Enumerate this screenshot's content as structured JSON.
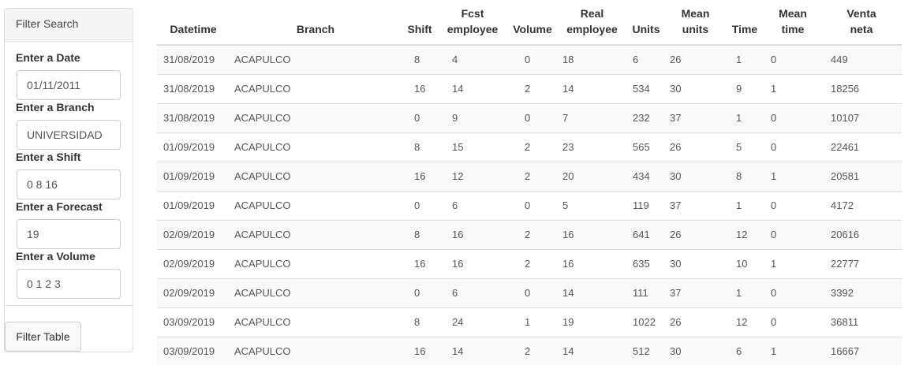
{
  "sidebar": {
    "heading": "Filter Search",
    "fields": [
      {
        "label": "Enter a Date",
        "value": "01/11/2011"
      },
      {
        "label": "Enter a Branch",
        "value": "UNIVERSIDAD"
      },
      {
        "label": "Enter a Shift",
        "value": "0 8 16"
      },
      {
        "label": "Enter a Forecast",
        "value": "19"
      },
      {
        "label": "Enter a Volume",
        "value": "0 1 2 3"
      }
    ],
    "button_label": "Filter Table"
  },
  "table": {
    "headers": [
      [
        "Datetime",
        ""
      ],
      [
        "Branch",
        ""
      ],
      [
        "Shift",
        ""
      ],
      [
        "Fcst",
        "employee"
      ],
      [
        "Volume",
        ""
      ],
      [
        "Real",
        "employee"
      ],
      [
        "Units",
        ""
      ],
      [
        "Mean",
        "units"
      ],
      [
        "Time",
        ""
      ],
      [
        "Mean",
        "time"
      ],
      [
        "Venta",
        "neta"
      ]
    ],
    "rows": [
      [
        "31/08/2019",
        "ACAPULCO",
        "8",
        "4",
        "0",
        "18",
        "6",
        "26",
        "1",
        "0",
        "449"
      ],
      [
        "31/08/2019",
        "ACAPULCO",
        "16",
        "14",
        "2",
        "14",
        "534",
        "30",
        "9",
        "1",
        "18256"
      ],
      [
        "31/08/2019",
        "ACAPULCO",
        "0",
        "9",
        "0",
        "7",
        "232",
        "37",
        "1",
        "0",
        "10107"
      ],
      [
        "01/09/2019",
        "ACAPULCO",
        "8",
        "15",
        "2",
        "23",
        "565",
        "26",
        "5",
        "0",
        "22461"
      ],
      [
        "01/09/2019",
        "ACAPULCO",
        "16",
        "12",
        "2",
        "20",
        "434",
        "30",
        "8",
        "1",
        "20581"
      ],
      [
        "01/09/2019",
        "ACAPULCO",
        "0",
        "6",
        "0",
        "5",
        "119",
        "37",
        "1",
        "0",
        "4172"
      ],
      [
        "02/09/2019",
        "ACAPULCO",
        "8",
        "16",
        "2",
        "16",
        "641",
        "26",
        "12",
        "0",
        "20616"
      ],
      [
        "02/09/2019",
        "ACAPULCO",
        "16",
        "16",
        "2",
        "16",
        "635",
        "30",
        "10",
        "1",
        "22777"
      ],
      [
        "02/09/2019",
        "ACAPULCO",
        "0",
        "6",
        "0",
        "14",
        "111",
        "37",
        "1",
        "0",
        "3392"
      ],
      [
        "03/09/2019",
        "ACAPULCO",
        "8",
        "24",
        "1",
        "19",
        "1022",
        "26",
        "12",
        "0",
        "36811"
      ],
      [
        "03/09/2019",
        "ACAPULCO",
        "16",
        "14",
        "2",
        "14",
        "512",
        "30",
        "6",
        "1",
        "16667"
      ]
    ]
  }
}
